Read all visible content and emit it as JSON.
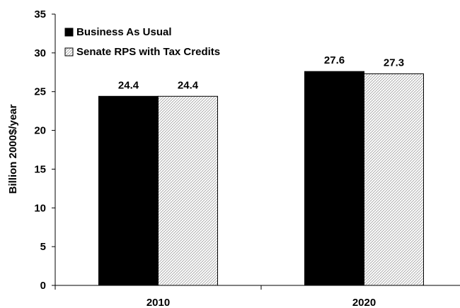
{
  "chart_data": {
    "type": "bar",
    "categories": [
      "2010",
      "2020"
    ],
    "series": [
      {
        "name": "Business As Usual",
        "values": [
          24.4,
          27.6
        ],
        "data_labels": [
          "24.4",
          "27.6"
        ],
        "fill": "#000000"
      },
      {
        "name": "Senate RPS with Tax Credits",
        "values": [
          24.4,
          27.3
        ],
        "data_labels": [
          "24.4",
          "27.3"
        ],
        "fill": "hatched-light-gray"
      }
    ],
    "title": "",
    "xlabel": "",
    "ylabel": "Billion 2000$/year",
    "ylim": [
      0,
      35
    ],
    "yticks": [
      "0",
      "5",
      "10",
      "15",
      "20",
      "25",
      "30",
      "35"
    ],
    "grid": false,
    "legend_position": "top-left"
  }
}
